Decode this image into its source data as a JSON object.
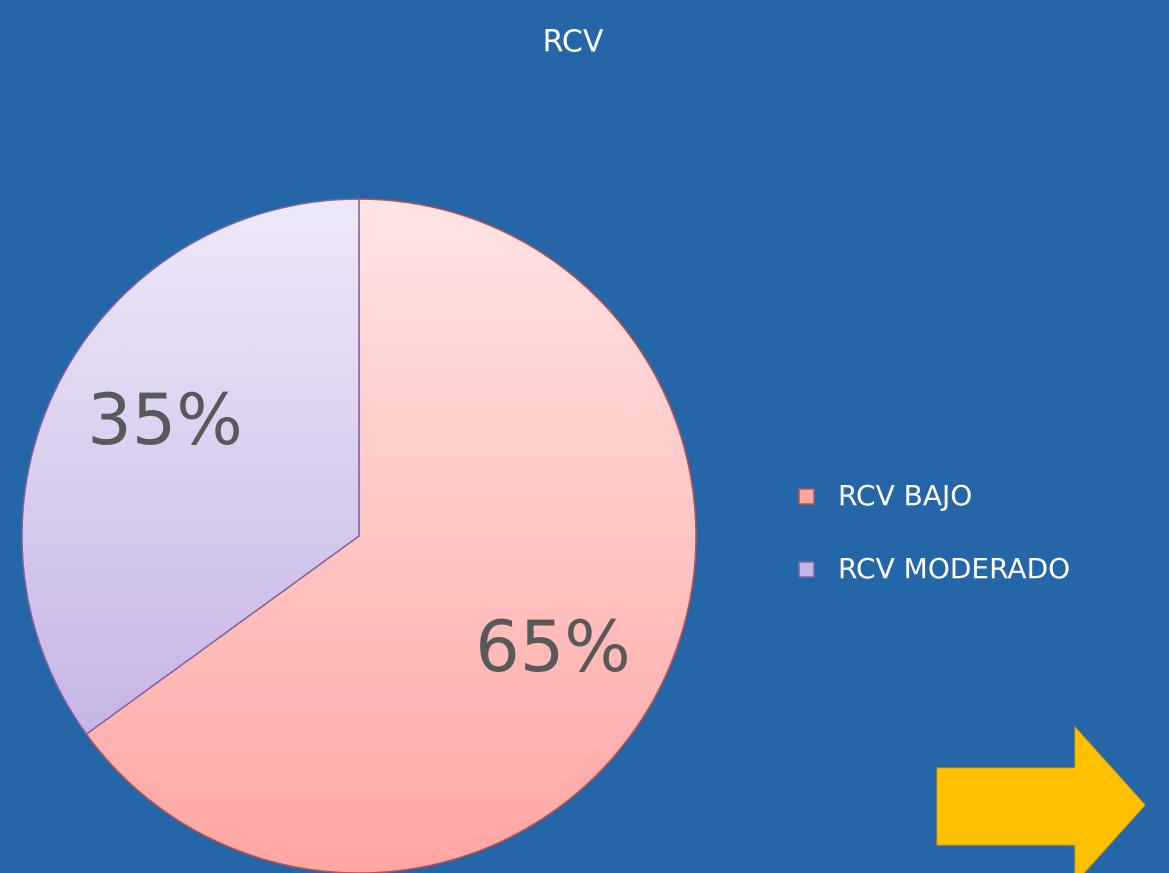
{
  "chart_data": {
    "type": "pie",
    "title": "RCV",
    "categories": [
      "RCV BAJO",
      "RCV MODERADO"
    ],
    "values": [
      65,
      35
    ],
    "value_labels": [
      "65%",
      "35%"
    ],
    "colors": [
      "#ffa6a3",
      "#c6b5e6"
    ],
    "edge_colors": [
      "#c0504d",
      "#8064a2"
    ],
    "legend": "right"
  }
}
